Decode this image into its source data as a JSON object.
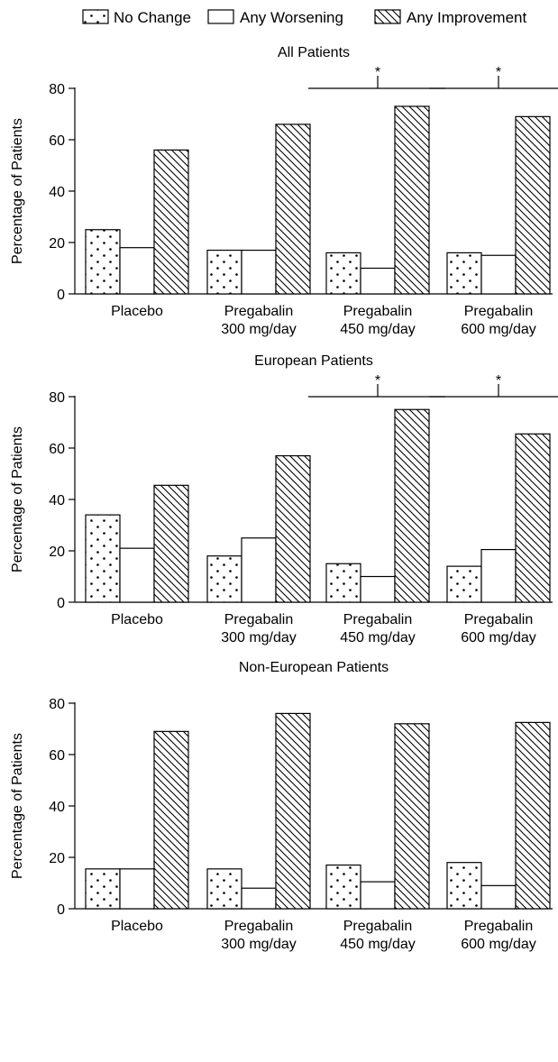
{
  "chart_data": {
    "type": "bar",
    "legend": {
      "placement": "top",
      "entries": [
        {
          "name": "No Change",
          "pattern": "dots"
        },
        {
          "name": "Any Worsening",
          "pattern": "plain"
        },
        {
          "name": "Any Improvement",
          "pattern": "hatch"
        }
      ]
    },
    "panels": [
      {
        "title": "All Patients",
        "ylabel": "Percentage of Patients",
        "ylim": [
          0,
          80
        ],
        "yticks": [
          "0",
          "20",
          "40",
          "60",
          "80"
        ],
        "categories": [
          {
            "line1": "Placebo",
            "line2": ""
          },
          {
            "line1": "Pregabalin",
            "line2": "300 mg/day"
          },
          {
            "line1": "Pregabalin",
            "line2": "450 mg/day"
          },
          {
            "line1": "Pregabalin",
            "line2": "600 mg/day"
          }
        ],
        "series": [
          {
            "name": "No Change",
            "values": [
              25,
              17,
              16,
              16
            ]
          },
          {
            "name": "Any Worsening",
            "values": [
              18,
              17,
              10,
              15
            ]
          },
          {
            "name": "Any Improvement",
            "values": [
              56,
              66,
              73,
              69
            ]
          }
        ],
        "significance": [
          {
            "category_index": 2,
            "symbol": "*"
          },
          {
            "category_index": 3,
            "symbol": "*"
          }
        ]
      },
      {
        "title": "European Patients",
        "ylabel": "Percentage of Patients",
        "ylim": [
          0,
          80
        ],
        "yticks": [
          "0",
          "20",
          "40",
          "60",
          "80"
        ],
        "categories": [
          {
            "line1": "Placebo",
            "line2": ""
          },
          {
            "line1": "Pregabalin",
            "line2": "300 mg/day"
          },
          {
            "line1": "Pregabalin",
            "line2": "450 mg/day"
          },
          {
            "line1": "Pregabalin",
            "line2": "600 mg/day"
          }
        ],
        "series": [
          {
            "name": "No Change",
            "values": [
              34,
              18,
              15,
              14
            ]
          },
          {
            "name": "Any Worsening",
            "values": [
              21,
              25,
              10,
              20.5
            ]
          },
          {
            "name": "Any Improvement",
            "values": [
              45.5,
              57,
              75,
              65.5
            ]
          }
        ],
        "significance": [
          {
            "category_index": 2,
            "symbol": "*"
          },
          {
            "category_index": 3,
            "symbol": "*"
          }
        ]
      },
      {
        "title": "Non-European Patients",
        "ylabel": "Percentage of Patients",
        "ylim": [
          0,
          80
        ],
        "yticks": [
          "0",
          "20",
          "40",
          "60",
          "80"
        ],
        "categories": [
          {
            "line1": "Placebo",
            "line2": ""
          },
          {
            "line1": "Pregabalin",
            "line2": "300 mg/day"
          },
          {
            "line1": "Pregabalin",
            "line2": "450 mg/day"
          },
          {
            "line1": "Pregabalin",
            "line2": "600 mg/day"
          }
        ],
        "series": [
          {
            "name": "No Change",
            "values": [
              15.5,
              15.5,
              17,
              18
            ]
          },
          {
            "name": "Any Worsening",
            "values": [
              15.5,
              8,
              10.5,
              9
            ]
          },
          {
            "name": "Any Improvement",
            "values": [
              69,
              76,
              72,
              72.5
            ]
          }
        ],
        "significance": []
      }
    ]
  }
}
